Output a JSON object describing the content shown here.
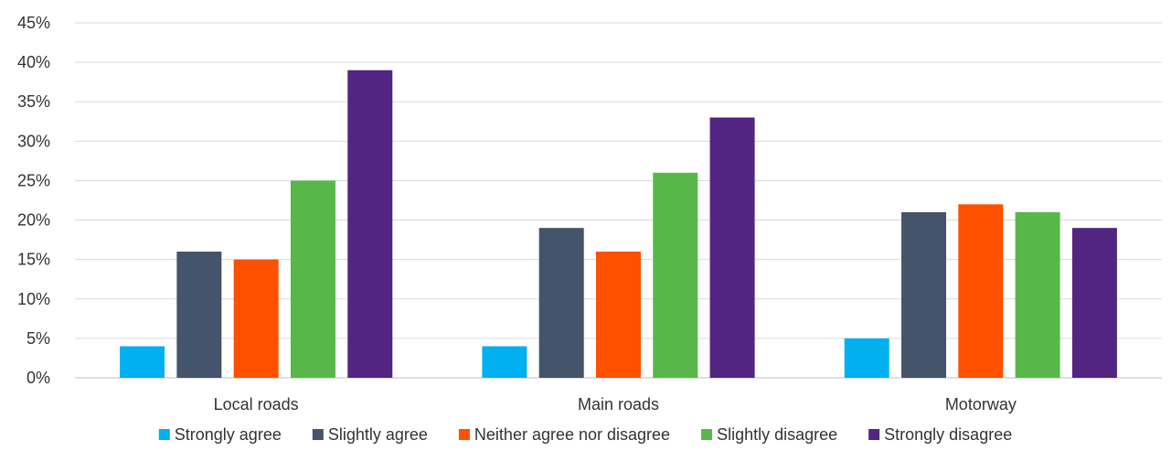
{
  "chart_data": {
    "type": "bar",
    "categories": [
      "Local roads",
      "Main roads",
      "Motorway"
    ],
    "series": [
      {
        "name": "Strongly agree",
        "color": "#00b0f0",
        "values": [
          4,
          4,
          5
        ]
      },
      {
        "name": "Slightly agree",
        "color": "#44546a",
        "values": [
          16,
          19,
          21
        ]
      },
      {
        "name": "Neither agree nor disagree",
        "color": "#ff5000",
        "values": [
          15,
          16,
          22
        ]
      },
      {
        "name": "Slightly disagree",
        "color": "#57b849",
        "values": [
          25,
          26,
          21
        ]
      },
      {
        "name": "Strongly disagree",
        "color": "#522583",
        "values": [
          39,
          33,
          19
        ]
      }
    ],
    "y_ticks": [
      "0%",
      "5%",
      "10%",
      "15%",
      "20%",
      "25%",
      "30%",
      "35%",
      "40%",
      "45%"
    ],
    "ylim": [
      0,
      45
    ],
    "y_unit": "%",
    "title": "",
    "xlabel": "",
    "ylabel": "",
    "grid": true,
    "legend_position": "bottom"
  }
}
